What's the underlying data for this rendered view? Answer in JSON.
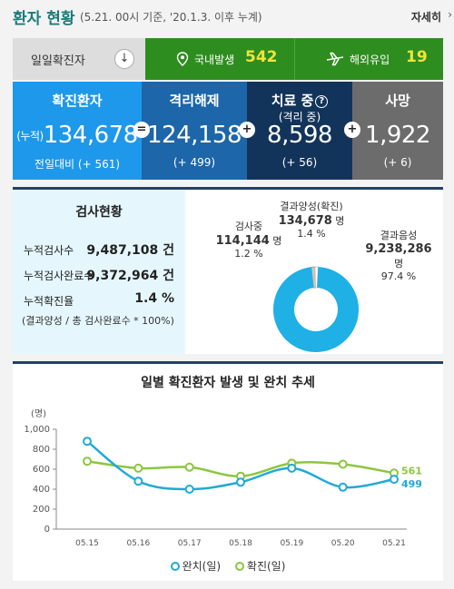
{
  "header": {
    "title": "환자 현황",
    "subtitle": "(5.21. 00시 기준, '20.1.3. 이후 누계)",
    "more_label": "자세히",
    "more_arrow": "›"
  },
  "daily": {
    "label": "일일확진자",
    "down_icon": "↓",
    "domestic_label": "국내발생",
    "domestic_value": "542",
    "import_label": "해외유입",
    "import_value": "19",
    "colors": {
      "bar": "#2e8d1f",
      "value": "#f1e43a"
    }
  },
  "stats": {
    "confirmed": {
      "label": "확진환자",
      "prefix": "(누적)",
      "value": "134,678",
      "delta_label": "전일대비",
      "delta": "(+ 561)"
    },
    "released": {
      "label": "격리해제",
      "value": "124,158",
      "delta": "(+ 499)"
    },
    "treating": {
      "label": "치료 중",
      "sub": "(격리 중)",
      "value": "8,598",
      "delta": "(+ 56)"
    },
    "deaths": {
      "label": "사망",
      "value": "1,922",
      "delta": "(+ 6)"
    },
    "ops": [
      "=",
      "+",
      "+"
    ],
    "help_icon": "?"
  },
  "test": {
    "title": "검사현황",
    "rows": [
      {
        "label": "누적검사수",
        "value": "9,487,108 건"
      },
      {
        "label": "누적검사완료수",
        "value": "9,372,964 건"
      },
      {
        "label": "누적확진율",
        "value": "1.4 %"
      }
    ],
    "note": "(결과양성 / 총 검사완료수 * 100%)",
    "donut": {
      "positive": {
        "label": "결과양성(확진)",
        "value": "134,678",
        "unit": "명",
        "pct": "1.4 %",
        "share": 1.4,
        "color": "#c7c7c7"
      },
      "testing": {
        "label": "검사중",
        "value": "114,144",
        "unit": "명",
        "pct": "1.2 %",
        "share": 1.2,
        "color": "#ffffff"
      },
      "negative": {
        "label": "결과음성",
        "value": "9,238,286",
        "unit": "명",
        "pct": "97.4 %",
        "share": 97.4,
        "color": "#1fb0e6"
      }
    }
  },
  "trend": {
    "title": "일별 확진환자 발생 및 완치 추세",
    "legend": [
      {
        "label": "완치(일)",
        "color": "#1fa9d6"
      },
      {
        "label": "확진(일)",
        "color": "#8cc63f"
      }
    ]
  },
  "chart_data": {
    "type": "line",
    "title": "일별 확진환자 발생 및 완치 추세",
    "ylabel": "(명)",
    "xlabel": "",
    "categories": [
      "05.15",
      "05.16",
      "05.17",
      "05.18",
      "05.19",
      "05.20",
      "05.21"
    ],
    "yticks": [
      "0",
      "200",
      "400",
      "600",
      "800",
      "1,000"
    ],
    "ylim": [
      0,
      1000
    ],
    "grid": false,
    "legend": "bottom",
    "series": [
      {
        "name": "완치(일)",
        "values": [
          880,
          480,
          400,
          470,
          610,
          420,
          499
        ],
        "color": "#1fa9d6",
        "end_label": "499"
      },
      {
        "name": "확진(일)",
        "values": [
          680,
          610,
          620,
          530,
          660,
          650,
          561
        ],
        "color": "#8cc63f",
        "end_label": "561"
      }
    ]
  }
}
